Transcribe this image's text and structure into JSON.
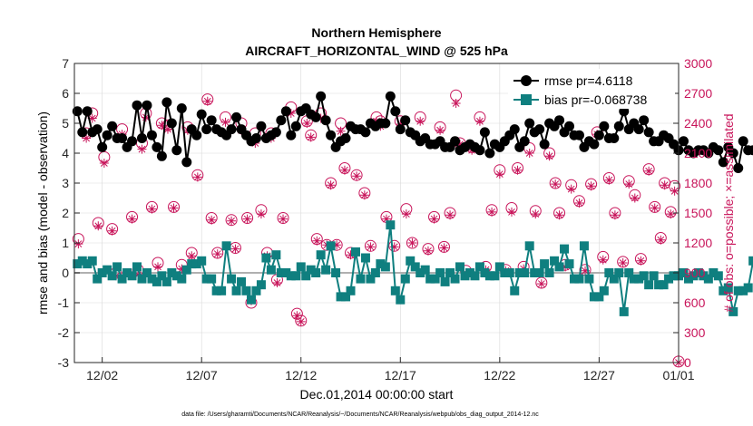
{
  "chart_data": {
    "type": "line",
    "title_line1": "Northern Hemisphere",
    "title_line2": "AIRCRAFT_HORIZONTAL_WIND @ 525 hPa",
    "xlabel": "Dec.01,2014 00:00:00 start",
    "ylabel_left": "rmse and bias (model - observation)",
    "ylabel_right": "# of obs: o=possible; ×=assimilated",
    "footnote": "data file: /Users/gharamti/Documents/NCAR/Reanalysis/~/Documents/NCAR/Reanalysis/webpub/obs_diag_output_2014-12.nc",
    "x_range_days": [
      0.6,
      31.0
    ],
    "ylim_left": [
      -3,
      7
    ],
    "ylim_right": [
      0,
      3000
    ],
    "x_ticks": [
      {
        "day": 2,
        "label": "12/02"
      },
      {
        "day": 7,
        "label": "12/07"
      },
      {
        "day": 12,
        "label": "12/12"
      },
      {
        "day": 17,
        "label": "12/17"
      },
      {
        "day": 22,
        "label": "12/22"
      },
      {
        "day": 27,
        "label": "12/27"
      },
      {
        "day": 31,
        "label": "01/01"
      }
    ],
    "y_ticks_left": [
      "-3",
      "-2",
      "-1",
      "0",
      "1",
      "2",
      "3",
      "4",
      "5",
      "6",
      "7"
    ],
    "y_ticks_right": [
      "0",
      "300",
      "600",
      "900",
      "1200",
      "1500",
      "1800",
      "2100",
      "2400",
      "2700",
      "3000"
    ],
    "legend": {
      "placement": "top-right",
      "rmse_label": "rmse pr=4.6118",
      "bias_label": "bias pr=-0.068738"
    },
    "colors": {
      "rmse": "#000000",
      "bias": "#0f7f7f",
      "obs": "#c8145a",
      "zero_line": "#b0b0b0",
      "grid": "#d9d9d9",
      "axis": "#262626"
    },
    "time_step_days": 0.25,
    "time_start_day": 0.75,
    "rmse_values": [
      5.4,
      4.7,
      5.4,
      4.7,
      4.8,
      4.2,
      4.6,
      4.9,
      4.5,
      4.5,
      4.2,
      4.4,
      5.6,
      4.5,
      5.6,
      4.6,
      4.2,
      3.9,
      5.7,
      5.0,
      4.1,
      5.5,
      3.7,
      4.8,
      4.6,
      5.3,
      4.8,
      5.1,
      4.8,
      4.7,
      4.6,
      4.8,
      5.2,
      4.8,
      4.6,
      4.4,
      4.5,
      4.9,
      4.5,
      4.6,
      4.7,
      5.1,
      5.4,
      4.6,
      4.9,
      5.4,
      5.5,
      5.3,
      5.2,
      5.9,
      5.1,
      4.6,
      4.2,
      4.4,
      4.5,
      4.9,
      4.8,
      4.8,
      4.7,
      5.0,
      4.9,
      5.0,
      5.0,
      5.9,
      5.4,
      4.8,
      5.1,
      4.7,
      4.6,
      4.4,
      4.5,
      4.3,
      4.3,
      4.4,
      4.2,
      4.2,
      4.4,
      4.1,
      4.2,
      4.3,
      4.2,
      4.1,
      4.7,
      4.0,
      4.3,
      4.2,
      4.4,
      4.6,
      4.8,
      4.2,
      4.4,
      5.0,
      4.7,
      4.8,
      4.3,
      5.0,
      4.9,
      5.1,
      4.7,
      4.9,
      4.6,
      4.6,
      4.2,
      4.4,
      4.3,
      4.6,
      4.9,
      4.5,
      4.5,
      4.9,
      5.4,
      4.8,
      5.0,
      4.8,
      5.1,
      4.7,
      4.4,
      4.4,
      4.6,
      4.5,
      4.3,
      4.1,
      4.4,
      4.1,
      4.0,
      4.1,
      4.1,
      4.0,
      4.2,
      4.1,
      3.7,
      4.2,
      4.0,
      3.5,
      4.4,
      4.1,
      4.1,
      4.3,
      4.3,
      4.4,
      4.3,
      4.1,
      4.3,
      4.7,
      4.4,
      4.2,
      4.4,
      4.5,
      4.6,
      4.4,
      4.4,
      4.1,
      4.2,
      4.6,
      4.5,
      4.9,
      4.6,
      4.7,
      4.4,
      4.2,
      4.4,
      4.0,
      4.1,
      4.3,
      4.6,
      4.4,
      4.2,
      4.5,
      4.3,
      4.6,
      4.6,
      4.2
    ],
    "bias_values": [
      0.3,
      0.4,
      0.3,
      0.4,
      -0.2,
      0.0,
      0.1,
      -0.1,
      0.2,
      -0.2,
      0.0,
      -0.1,
      0.2,
      -0.2,
      0.0,
      -0.2,
      -0.3,
      -0.1,
      -0.3,
      0.0,
      -0.1,
      -0.2,
      0.1,
      0.3,
      0.3,
      0.4,
      -0.2,
      -0.2,
      -0.6,
      -0.6,
      0.9,
      -0.2,
      -0.6,
      -0.3,
      -0.6,
      -0.9,
      -0.6,
      -0.4,
      0.5,
      0.1,
      0.6,
      0.0,
      0.0,
      -0.1,
      -0.1,
      0.2,
      -0.1,
      0.1,
      0.0,
      0.6,
      0.1,
      0.9,
      0.0,
      -0.8,
      -0.8,
      -0.6,
      0.7,
      -0.2,
      0.5,
      -0.2,
      0.0,
      0.3,
      0.2,
      1.6,
      -0.6,
      -0.9,
      -0.2,
      0.4,
      0.2,
      0.0,
      0.1,
      -0.2,
      -0.2,
      0.0,
      -0.3,
      0.0,
      -0.2,
      0.2,
      -0.1,
      0.0,
      -0.1,
      0.2,
      0.0,
      -0.1,
      -0.1,
      0.2,
      0.0,
      0.0,
      -0.6,
      0.0,
      0.0,
      0.9,
      0.0,
      0.0,
      0.3,
      0.0,
      0.4,
      0.2,
      0.8,
      0.3,
      -0.2,
      -0.2,
      0.9,
      -0.2,
      -0.8,
      -0.8,
      -0.6,
      0.0,
      -0.2,
      0.0,
      -1.3,
      0.0,
      -0.2,
      -0.2,
      -0.1,
      -0.4,
      -0.1,
      -0.4,
      -0.4,
      -0.2,
      -0.1,
      -0.1,
      0.0,
      -0.2,
      -0.1,
      0.0,
      -0.1,
      -0.2,
      0.0,
      -0.1,
      -0.6,
      -0.5,
      -1.3,
      -0.6,
      -0.6,
      -0.5,
      0.4,
      -0.3,
      0.0,
      0.0,
      -0.1,
      0.0,
      -0.2,
      -0.3,
      -0.5,
      -0.2,
      -0.4,
      0.0,
      -0.2,
      -0.4,
      -0.3,
      -0.4,
      -0.3,
      -0.5,
      -0.4,
      -0.3,
      -0.3,
      -0.6,
      -0.8,
      -0.4,
      -0.6,
      -0.5,
      -0.7,
      -0.8,
      -0.5,
      -0.7,
      -0.5,
      -0.6,
      -0.8,
      -0.3,
      -0.5,
      -0.3
    ],
    "obs_points": [
      {
        "day": 0.8,
        "poss": 1240,
        "asm": 1190
      },
      {
        "day": 1.2,
        "poss": 2300,
        "asm": 2250
      },
      {
        "day": 1.5,
        "poss": 2500,
        "asm": 2450
      },
      {
        "day": 1.8,
        "poss": 1400,
        "asm": 1370
      },
      {
        "day": 2.1,
        "poss": 2060,
        "asm": 2000
      },
      {
        "day": 2.5,
        "poss": 1340,
        "asm": 1320
      },
      {
        "day": 2.7,
        "poss": 900,
        "asm": 870
      },
      {
        "day": 3.0,
        "poss": 2340,
        "asm": 2290
      },
      {
        "day": 3.5,
        "poss": 1460,
        "asm": 1440
      },
      {
        "day": 3.8,
        "poss": 930,
        "asm": 880
      },
      {
        "day": 4.0,
        "poss": 2200,
        "asm": 2140
      },
      {
        "day": 4.2,
        "poss": 2500,
        "asm": 2460
      },
      {
        "day": 4.5,
        "poss": 1560,
        "asm": 1540
      },
      {
        "day": 4.8,
        "poss": 1000,
        "asm": 960
      },
      {
        "day": 5.0,
        "poss": 2400,
        "asm": 2380
      },
      {
        "day": 5.3,
        "poss": 2380,
        "asm": 2340
      },
      {
        "day": 5.6,
        "poss": 1560,
        "asm": 1550
      },
      {
        "day": 6.0,
        "poss": 980,
        "asm": 940
      },
      {
        "day": 6.3,
        "poss": 2360,
        "asm": 2330
      },
      {
        "day": 6.5,
        "poss": 1100,
        "asm": 1070
      },
      {
        "day": 6.8,
        "poss": 1880,
        "asm": 1860
      },
      {
        "day": 7.3,
        "poss": 2640,
        "asm": 2620
      },
      {
        "day": 7.5,
        "poss": 1450,
        "asm": 1430
      },
      {
        "day": 7.8,
        "poss": 1100,
        "asm": 1090
      },
      {
        "day": 8.2,
        "poss": 2460,
        "asm": 2410
      },
      {
        "day": 8.5,
        "poss": 1430,
        "asm": 1420
      },
      {
        "day": 8.7,
        "poss": 1150,
        "asm": 1140
      },
      {
        "day": 9.0,
        "poss": 2400,
        "asm": 2330
      },
      {
        "day": 9.3,
        "poss": 1450,
        "asm": 1440
      },
      {
        "day": 9.5,
        "poss": 600,
        "asm": 620
      },
      {
        "day": 9.7,
        "poss": 2300,
        "asm": 2200
      },
      {
        "day": 10.0,
        "poss": 1530,
        "asm": 1490
      },
      {
        "day": 10.3,
        "poss": 1100,
        "asm": 1070
      },
      {
        "day": 10.5,
        "poss": 2300,
        "asm": 2250
      },
      {
        "day": 10.8,
        "poss": 830,
        "asm": 800
      },
      {
        "day": 11.1,
        "poss": 1450,
        "asm": 1440
      },
      {
        "day": 11.5,
        "poss": 2560,
        "asm": 2500
      },
      {
        "day": 11.8,
        "poss": 490,
        "asm": 470
      },
      {
        "day": 12.0,
        "poss": 420,
        "asm": 410
      },
      {
        "day": 12.3,
        "poss": 2420,
        "asm": 2400
      },
      {
        "day": 12.5,
        "poss": 2280,
        "asm": 2260
      },
      {
        "day": 12.8,
        "poss": 1240,
        "asm": 1220
      },
      {
        "day": 13.0,
        "poss": 2500,
        "asm": 2450
      },
      {
        "day": 13.3,
        "poss": 1180,
        "asm": 1180
      },
      {
        "day": 13.5,
        "poss": 1800,
        "asm": 1780
      },
      {
        "day": 13.8,
        "poss": 1180,
        "asm": 1180
      },
      {
        "day": 14.0,
        "poss": 2400,
        "asm": 2320
      },
      {
        "day": 14.2,
        "poss": 1950,
        "asm": 1930
      },
      {
        "day": 14.5,
        "poss": 1100,
        "asm": 1080
      },
      {
        "day": 14.8,
        "poss": 1880,
        "asm": 1870
      },
      {
        "day": 15.2,
        "poss": 1700,
        "asm": 1680
      },
      {
        "day": 15.5,
        "poss": 1170,
        "asm": 1160
      },
      {
        "day": 15.8,
        "poss": 2460,
        "asm": 2420
      },
      {
        "day": 16.0,
        "poss": 2420,
        "asm": 2370
      },
      {
        "day": 16.3,
        "poss": 1460,
        "asm": 1440
      },
      {
        "day": 16.7,
        "poss": 1170,
        "asm": 1160
      },
      {
        "day": 17.0,
        "poss": 2420,
        "asm": 2390
      },
      {
        "day": 17.3,
        "poss": 1540,
        "asm": 1490
      },
      {
        "day": 17.6,
        "poss": 1200,
        "asm": 1200
      },
      {
        "day": 18.0,
        "poss": 2460,
        "asm": 2420
      },
      {
        "day": 18.4,
        "poss": 1140,
        "asm": 1120
      },
      {
        "day": 18.7,
        "poss": 1460,
        "asm": 1440
      },
      {
        "day": 19.0,
        "poss": 2360,
        "asm": 2330
      },
      {
        "day": 19.2,
        "poss": 1160,
        "asm": 1150
      },
      {
        "day": 19.5,
        "poss": 1500,
        "asm": 1480
      },
      {
        "day": 19.8,
        "poss": 2680,
        "asm": 2600
      },
      {
        "day": 20.0,
        "poss": 2200,
        "asm": 2190
      },
      {
        "day": 20.3,
        "poss": 920,
        "asm": 900
      },
      {
        "day": 20.6,
        "poss": 2160,
        "asm": 2130
      },
      {
        "day": 21.0,
        "poss": 2460,
        "asm": 2420
      },
      {
        "day": 21.3,
        "poss": 960,
        "asm": 930
      },
      {
        "day": 21.6,
        "poss": 1530,
        "asm": 1510
      },
      {
        "day": 22.0,
        "poss": 1930,
        "asm": 1890
      },
      {
        "day": 22.3,
        "poss": 930,
        "asm": 920
      },
      {
        "day": 22.6,
        "poss": 1550,
        "asm": 1510
      },
      {
        "day": 22.9,
        "poss": 1950,
        "asm": 1930
      },
      {
        "day": 23.2,
        "poss": 960,
        "asm": 940
      },
      {
        "day": 23.5,
        "poss": 2150,
        "asm": 2100
      },
      {
        "day": 23.8,
        "poss": 1520,
        "asm": 1490
      },
      {
        "day": 24.1,
        "poss": 800,
        "asm": 790
      },
      {
        "day": 24.5,
        "poss": 2100,
        "asm": 2070
      },
      {
        "day": 24.8,
        "poss": 1800,
        "asm": 1790
      },
      {
        "day": 25.0,
        "poss": 1500,
        "asm": 1480
      },
      {
        "day": 25.3,
        "poss": 980,
        "asm": 960
      },
      {
        "day": 25.6,
        "poss": 1780,
        "asm": 1740
      },
      {
        "day": 26.0,
        "poss": 1620,
        "asm": 1600
      },
      {
        "day": 26.3,
        "poss": 930,
        "asm": 920
      },
      {
        "day": 26.6,
        "poss": 1790,
        "asm": 1770
      },
      {
        "day": 26.9,
        "poss": 2310,
        "asm": 2290
      },
      {
        "day": 27.2,
        "poss": 1060,
        "asm": 1030
      },
      {
        "day": 27.5,
        "poss": 1850,
        "asm": 1830
      },
      {
        "day": 27.8,
        "poss": 1500,
        "asm": 1480
      },
      {
        "day": 28.2,
        "poss": 1010,
        "asm": 1000
      },
      {
        "day": 28.5,
        "poss": 1820,
        "asm": 1790
      },
      {
        "day": 28.8,
        "poss": 1680,
        "asm": 1650
      },
      {
        "day": 29.1,
        "poss": 1040,
        "asm": 1020
      },
      {
        "day": 29.5,
        "poss": 1940,
        "asm": 1920
      },
      {
        "day": 29.8,
        "poss": 1560,
        "asm": 1550
      },
      {
        "day": 30.1,
        "poss": 1250,
        "asm": 1230
      },
      {
        "day": 30.3,
        "poss": 1800,
        "asm": 1780
      },
      {
        "day": 30.6,
        "poss": 1510,
        "asm": 1490
      },
      {
        "day": 30.8,
        "poss": 1770,
        "asm": 1720
      },
      {
        "day": 31.0,
        "poss": 10,
        "asm": 0
      }
    ]
  }
}
